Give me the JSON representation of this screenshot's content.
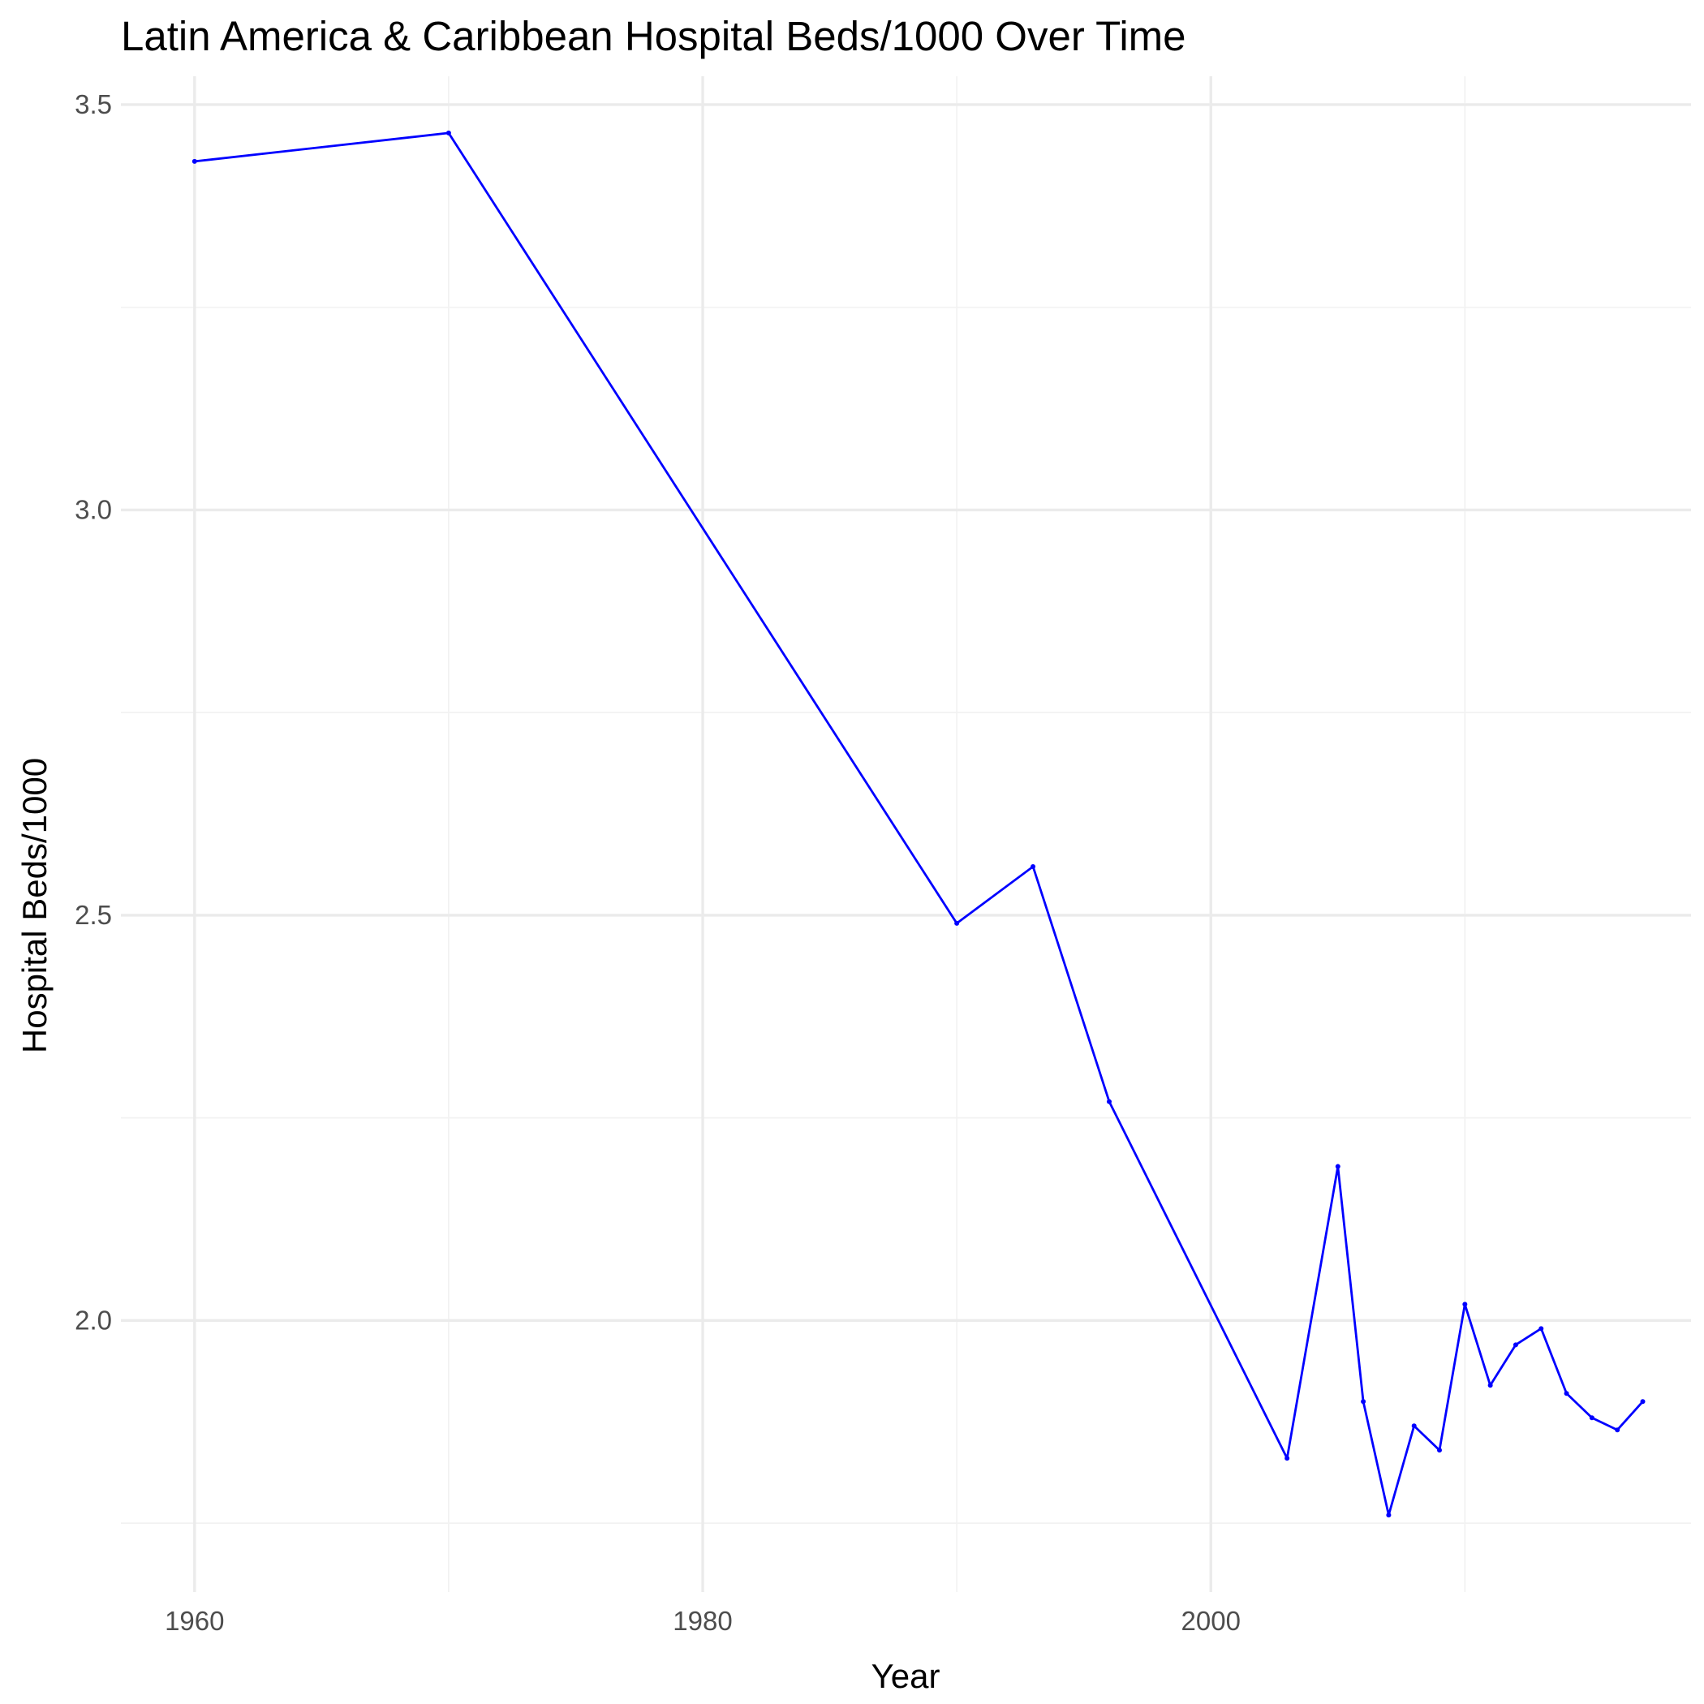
{
  "chart_data": {
    "type": "line",
    "title": "Latin America & Caribbean Hospital Beds/1000 Over Time",
    "xlabel": "Year",
    "ylabel": "Hospital Beds/1000",
    "xlim": [
      1957.1,
      2018.9
    ],
    "ylim": [
      1.665,
      3.535
    ],
    "x_ticks": [
      1960,
      1980,
      2000
    ],
    "y_ticks": [
      2.0,
      2.5,
      3.0,
      3.5
    ],
    "y_tick_labels": [
      "2.0",
      "2.5",
      "3.0",
      "3.5"
    ],
    "grid": true,
    "line_color": "#0000ff",
    "series": [
      {
        "x": [
          1960,
          1970,
          1990,
          1993,
          1996,
          2003,
          2005,
          2006,
          2007,
          2008,
          2009,
          2010,
          2011,
          2012,
          2013,
          2014,
          2015,
          2016,
          2017
        ],
        "values": [
          3.43,
          3.465,
          2.49,
          2.56,
          2.27,
          1.83,
          2.19,
          1.9,
          1.76,
          1.87,
          1.84,
          2.02,
          1.92,
          1.97,
          1.99,
          1.91,
          1.88,
          1.865,
          1.9
        ]
      }
    ]
  }
}
